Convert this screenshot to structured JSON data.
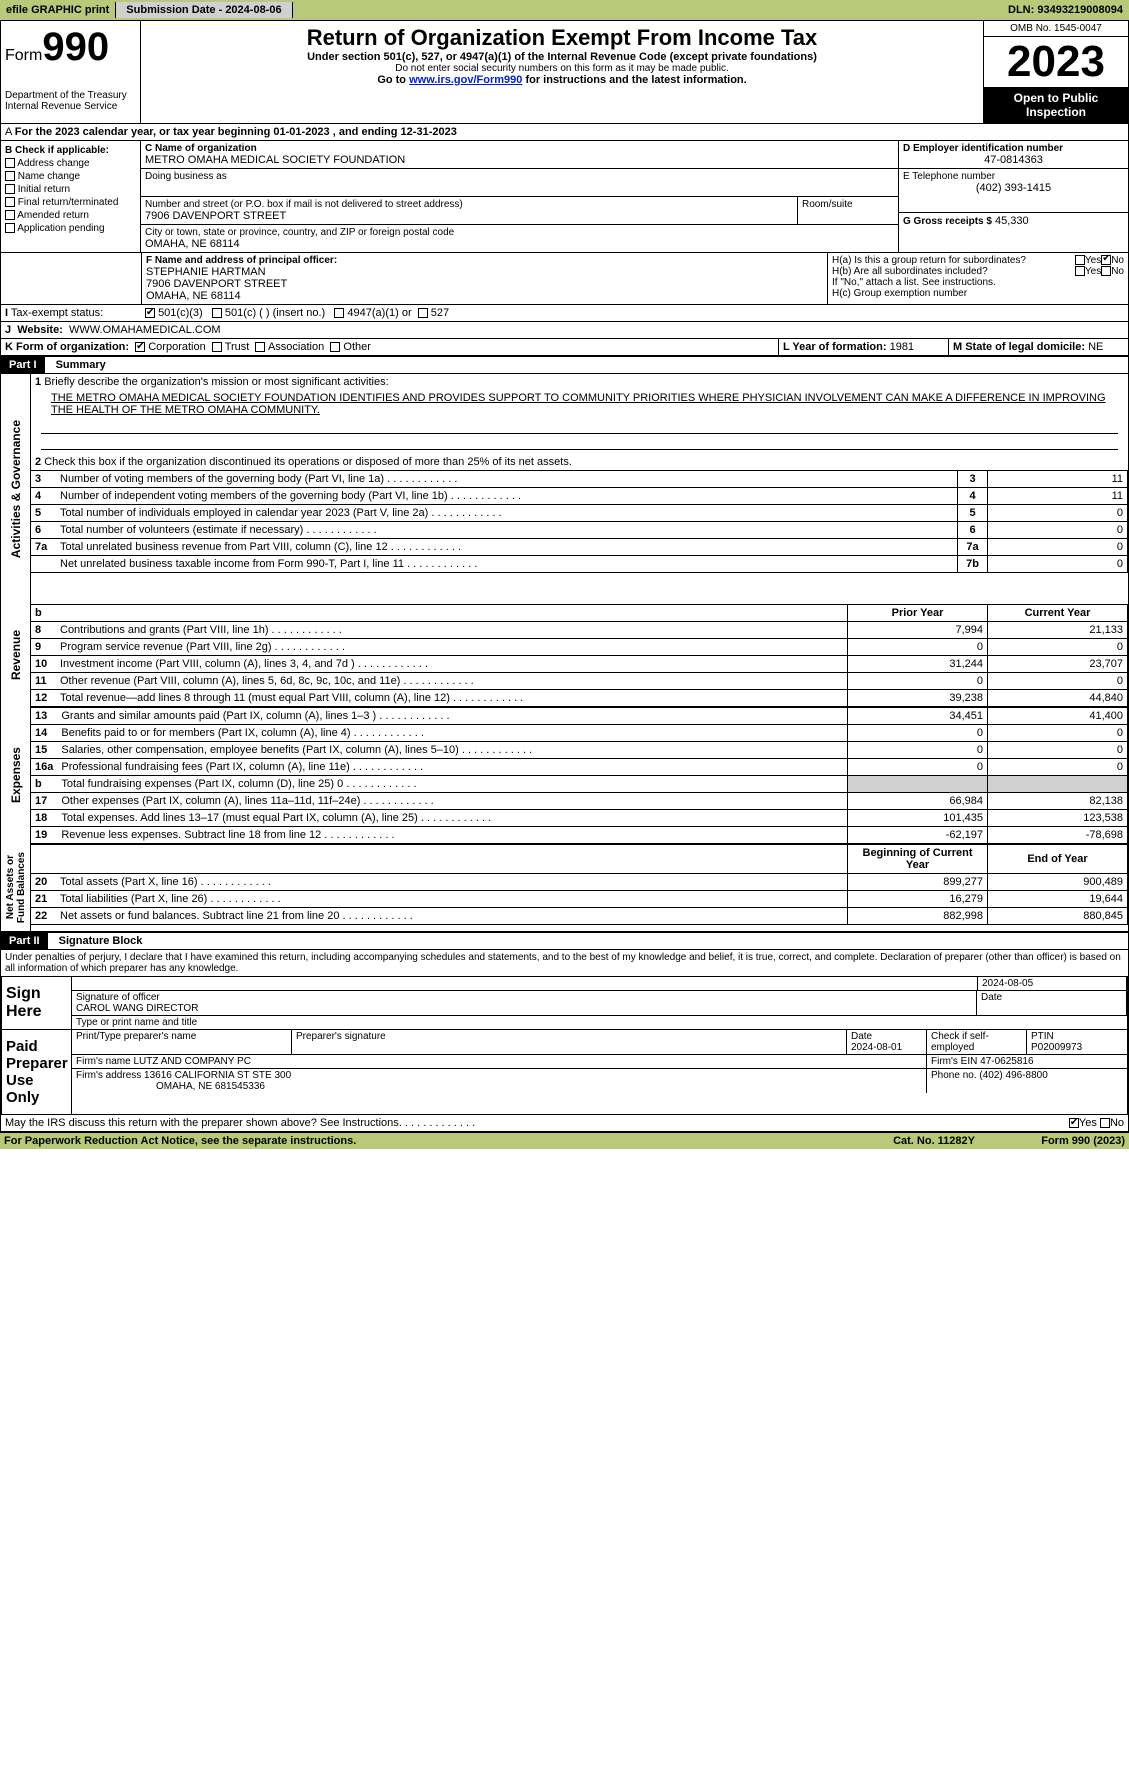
{
  "topbar": {
    "efile": "efile GRAPHIC print",
    "submission": "Submission Date - 2024-08-06",
    "dln": "DLN: 93493219008094"
  },
  "header": {
    "form": "Form",
    "num": "990",
    "dept": "Department of the Treasury\nInternal Revenue Service",
    "title": "Return of Organization Exempt From Income Tax",
    "sub1": "Under section 501(c), 527, or 4947(a)(1) of the Internal Revenue Code (except private foundations)",
    "sub2": "Do not enter social security numbers on this form as it may be made public.",
    "sub3_a": "Go to ",
    "sub3_link": "www.irs.gov/Form990",
    "sub3_b": " for instructions and the latest information.",
    "omb": "OMB No. 1545-0047",
    "year": "2023",
    "inspection": "Open to Public Inspection"
  },
  "line_a": "For the 2023 calendar year, or tax year beginning 01-01-2023    , and ending 12-31-2023",
  "boxB": {
    "label": "B Check if applicable:",
    "items": [
      "Address change",
      "Name change",
      "Initial return",
      "Final return/terminated",
      "Amended return",
      "Application pending"
    ]
  },
  "boxC": {
    "label": "C Name of organization",
    "name": "METRO OMAHA MEDICAL SOCIETY FOUNDATION",
    "dba": "Doing business as",
    "addr_label": "Number and street (or P.O. box if mail is not delivered to street address)",
    "addr": "7906 DAVENPORT STREET",
    "room": "Room/suite",
    "city_label": "City or town, state or province, country, and ZIP or foreign postal code",
    "city": "OMAHA, NE  68114"
  },
  "boxD": {
    "label": "D Employer identification number",
    "val": "47-0814363"
  },
  "boxE": {
    "label": "E Telephone number",
    "val": "(402) 393-1415"
  },
  "boxG": {
    "label": "G Gross receipts $",
    "val": "45,330"
  },
  "boxF": {
    "label": "F  Name and address of principal officer:",
    "name": "STEPHANIE HARTMAN",
    "addr": "7906 DAVENPORT STREET",
    "city": "OMAHA, NE  68114"
  },
  "boxH": {
    "a": "H(a)  Is this a group return for subordinates?",
    "b": "H(b)  Are all subordinates included?",
    "b2": "If \"No,\" attach a list. See instructions.",
    "c": "H(c)  Group exemption number ",
    "yes": "Yes",
    "no": "No"
  },
  "boxI": {
    "label": "Tax-exempt status:",
    "c3": "501(c)(3)",
    "c": "501(c) (  ) (insert no.)",
    "a1": "4947(a)(1) or",
    "c527": "527"
  },
  "boxJ": {
    "label": "Website: ",
    "val": "WWW.OMAHAMEDICAL.COM"
  },
  "boxK": {
    "label": "K Form of organization:",
    "corp": "Corporation",
    "trust": "Trust",
    "assoc": "Association",
    "other": "Other"
  },
  "boxL": {
    "label": "L Year of formation:",
    "val": "1981"
  },
  "boxM": {
    "label": "M State of legal domicile:",
    "val": "NE"
  },
  "part1": {
    "hdr": "Part I",
    "title": "Summary"
  },
  "summary": {
    "l1": "Briefly describe the organization's mission or most significant activities:",
    "mission": "THE METRO OMAHA MEDICAL SOCIETY FOUNDATION IDENTIFIES AND PROVIDES SUPPORT TO COMMUNITY PRIORITIES WHERE PHYSICIAN INVOLVEMENT CAN MAKE A DIFFERENCE IN IMPROVING THE HEALTH OF THE METRO OMAHA COMMUNITY.",
    "l2": "Check this box       if the organization discontinued its operations or disposed of more than 25% of its net assets.",
    "lines": [
      {
        "n": "3",
        "t": "Number of voting members of the governing body (Part VI, line 1a)",
        "k": "3",
        "v": "11"
      },
      {
        "n": "4",
        "t": "Number of independent voting members of the governing body (Part VI, line 1b)",
        "k": "4",
        "v": "11"
      },
      {
        "n": "5",
        "t": "Total number of individuals employed in calendar year 2023 (Part V, line 2a)",
        "k": "5",
        "v": "0"
      },
      {
        "n": "6",
        "t": "Total number of volunteers (estimate if necessary)",
        "k": "6",
        "v": "0"
      },
      {
        "n": "7a",
        "t": "Total unrelated business revenue from Part VIII, column (C), line 12",
        "k": "7a",
        "v": "0"
      },
      {
        "n": "",
        "t": "Net unrelated business taxable income from Form 990-T, Part I, line 11",
        "k": "7b",
        "v": "0"
      }
    ],
    "col_hdr": {
      "prior": "Prior Year",
      "current": "Current Year",
      "bcy": "Beginning of Current Year",
      "eoy": "End of Year"
    },
    "rev": [
      {
        "n": "8",
        "t": "Contributions and grants (Part VIII, line 1h)",
        "p": "7,994",
        "c": "21,133"
      },
      {
        "n": "9",
        "t": "Program service revenue (Part VIII, line 2g)",
        "p": "0",
        "c": "0"
      },
      {
        "n": "10",
        "t": "Investment income (Part VIII, column (A), lines 3, 4, and 7d )",
        "p": "31,244",
        "c": "23,707"
      },
      {
        "n": "11",
        "t": "Other revenue (Part VIII, column (A), lines 5, 6d, 8c, 9c, 10c, and 11e)",
        "p": "0",
        "c": "0"
      },
      {
        "n": "12",
        "t": "Total revenue—add lines 8 through 11 (must equal Part VIII, column (A), line 12)",
        "p": "39,238",
        "c": "44,840"
      }
    ],
    "exp": [
      {
        "n": "13",
        "t": "Grants and similar amounts paid (Part IX, column (A), lines 1–3 )",
        "p": "34,451",
        "c": "41,400"
      },
      {
        "n": "14",
        "t": "Benefits paid to or for members (Part IX, column (A), line 4)",
        "p": "0",
        "c": "0"
      },
      {
        "n": "15",
        "t": "Salaries, other compensation, employee benefits (Part IX, column (A), lines 5–10)",
        "p": "0",
        "c": "0"
      },
      {
        "n": "16a",
        "t": "Professional fundraising fees (Part IX, column (A), line 11e)",
        "p": "0",
        "c": "0"
      },
      {
        "n": "b",
        "t": "Total fundraising expenses (Part IX, column (D), line 25) 0",
        "p": "shade",
        "c": "shade"
      },
      {
        "n": "17",
        "t": "Other expenses (Part IX, column (A), lines 11a–11d, 11f–24e)",
        "p": "66,984",
        "c": "82,138"
      },
      {
        "n": "18",
        "t": "Total expenses. Add lines 13–17 (must equal Part IX, column (A), line 25)",
        "p": "101,435",
        "c": "123,538"
      },
      {
        "n": "19",
        "t": "Revenue less expenses. Subtract line 18 from line 12",
        "p": "-62,197",
        "c": "-78,698"
      }
    ],
    "net": [
      {
        "n": "20",
        "t": "Total assets (Part X, line 16)",
        "p": "899,277",
        "c": "900,489"
      },
      {
        "n": "21",
        "t": "Total liabilities (Part X, line 26)",
        "p": "16,279",
        "c": "19,644"
      },
      {
        "n": "22",
        "t": "Net assets or fund balances. Subtract line 21 from line 20",
        "p": "882,998",
        "c": "880,845"
      }
    ],
    "sides": {
      "ag": "Activities & Governance",
      "rev": "Revenue",
      "exp": "Expenses",
      "net": "Net Assets or\nFund Balances"
    }
  },
  "part2": {
    "hdr": "Part II",
    "title": "Signature Block"
  },
  "sig": {
    "penalty": "Under penalties of perjury, I declare that I have examined this return, including accompanying schedules and statements, and to the best of my knowledge and belief, it is true, correct, and complete. Declaration of preparer (other than officer) is based on all information of which preparer has any knowledge.",
    "sign_here": "Sign Here",
    "sig_off": "Signature of officer",
    "sig_name": "CAROL WANG  DIRECTOR",
    "sig_type": "Type or print name and title",
    "date_label": "Date",
    "date": "2024-08-05",
    "paid": "Paid Preparer Use Only",
    "prep_name_l": "Print/Type preparer's name",
    "prep_sig_l": "Preparer's signature",
    "prep_date": "2024-08-01",
    "check_self": "Check       if self-employed",
    "ptin_l": "PTIN",
    "ptin": "P02009973",
    "firm_l": "Firm's name   ",
    "firm": "LUTZ AND COMPANY PC",
    "firm_ein_l": "Firm's EIN  ",
    "firm_ein": "47-0625816",
    "firm_addr_l": "Firm's address ",
    "firm_addr": "13616 CALIFORNIA ST STE 300",
    "firm_city": "OMAHA, NE  681545336",
    "phone_l": "Phone no.",
    "phone": "(402) 496-8800",
    "discuss": "May the IRS discuss this return with the preparer shown above? See Instructions.",
    "yes": "Yes",
    "no": "No"
  },
  "footer": {
    "pra": "For Paperwork Reduction Act Notice, see the separate instructions.",
    "cat": "Cat. No. 11282Y",
    "form": "Form 990 (2023)"
  }
}
